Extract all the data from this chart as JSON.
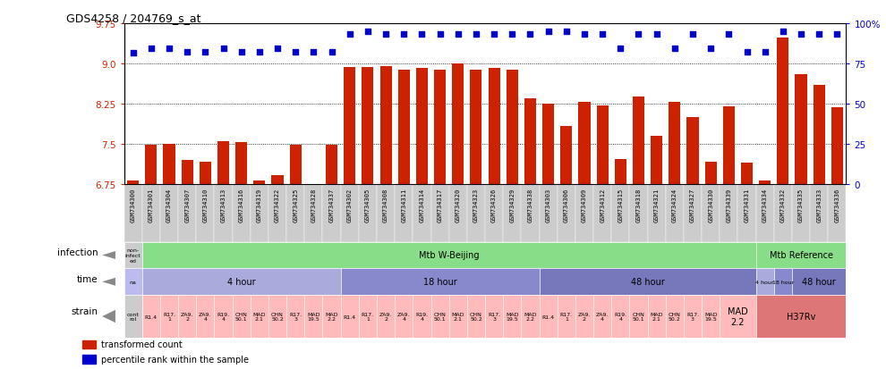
{
  "title": "GDS4258 / 204769_s_at",
  "samples": [
    "GSM734300",
    "GSM734301",
    "GSM734304",
    "GSM734307",
    "GSM734310",
    "GSM734313",
    "GSM734316",
    "GSM734319",
    "GSM734322",
    "GSM734325",
    "GSM734328",
    "GSM734337",
    "GSM734302",
    "GSM734305",
    "GSM734308",
    "GSM734311",
    "GSM734314",
    "GSM734317",
    "GSM734320",
    "GSM734323",
    "GSM734326",
    "GSM734329",
    "GSM734338",
    "GSM734303",
    "GSM734306",
    "GSM734309",
    "GSM734312",
    "GSM734315",
    "GSM734318",
    "GSM734321",
    "GSM734324",
    "GSM734327",
    "GSM734330",
    "GSM734339",
    "GSM734331",
    "GSM734334",
    "GSM734332",
    "GSM734335",
    "GSM734333",
    "GSM734336"
  ],
  "bar_values": [
    6.83,
    7.48,
    7.5,
    7.2,
    7.18,
    7.55,
    7.53,
    6.83,
    6.93,
    7.48,
    6.65,
    7.48,
    8.93,
    8.93,
    8.95,
    8.88,
    8.92,
    8.88,
    9.0,
    8.88,
    8.92,
    8.88,
    8.35,
    8.25,
    7.83,
    8.28,
    8.22,
    7.22,
    8.38,
    7.65,
    8.28,
    8.0,
    7.18,
    8.2,
    7.15,
    6.82,
    9.48,
    8.8,
    8.6,
    8.18
  ],
  "dot_values": [
    9.2,
    9.28,
    9.28,
    9.22,
    9.22,
    9.28,
    9.22,
    9.22,
    9.28,
    9.22,
    9.22,
    9.22,
    9.55,
    9.6,
    9.55,
    9.55,
    9.55,
    9.55,
    9.55,
    9.55,
    9.55,
    9.55,
    9.55,
    9.6,
    9.6,
    9.55,
    9.55,
    9.28,
    9.55,
    9.55,
    9.28,
    9.55,
    9.28,
    9.55,
    9.22,
    9.22,
    9.6,
    9.55,
    9.55,
    9.55
  ],
  "ylim": [
    6.75,
    9.75
  ],
  "yticks_left": [
    6.75,
    7.5,
    8.25,
    9.0,
    9.75
  ],
  "yticks_right": [
    0,
    25,
    50,
    75,
    100
  ],
  "bar_color": "#CC2200",
  "dot_color": "#0000CC",
  "bg_color": "#FFFFFF",
  "xticklabel_bg": "#CCCCCC",
  "infection_row": {
    "label": "infection",
    "segments": [
      {
        "text": "non-\ninfect\ned",
        "start": 0,
        "end": 1,
        "color": "#CCCCCC"
      },
      {
        "text": "Mtb W-Beijing",
        "start": 1,
        "end": 35,
        "color": "#88DD88"
      },
      {
        "text": "Mtb Reference",
        "start": 35,
        "end": 40,
        "color": "#88DD88"
      }
    ]
  },
  "time_row": {
    "label": "time",
    "segments": [
      {
        "text": "na",
        "start": 0,
        "end": 1,
        "color": "#BBBBEE"
      },
      {
        "text": "4 hour",
        "start": 1,
        "end": 12,
        "color": "#AAAADD"
      },
      {
        "text": "18 hour",
        "start": 12,
        "end": 23,
        "color": "#8888CC"
      },
      {
        "text": "48 hour",
        "start": 23,
        "end": 35,
        "color": "#7777BB"
      },
      {
        "text": "4 hour",
        "start": 35,
        "end": 36,
        "color": "#AAAADD"
      },
      {
        "text": "18 hour",
        "start": 36,
        "end": 37,
        "color": "#8888CC"
      },
      {
        "text": "48 hour",
        "start": 37,
        "end": 40,
        "color": "#7777BB"
      }
    ]
  },
  "strain_row": {
    "label": "strain",
    "segments": [
      {
        "text": "cont\nrol",
        "start": 0,
        "end": 1,
        "color": "#CCCCCC"
      },
      {
        "text": "R1.4",
        "start": 1,
        "end": 2,
        "color": "#FFBBBB"
      },
      {
        "text": "R17.\n1",
        "start": 2,
        "end": 3,
        "color": "#FFBBBB"
      },
      {
        "text": "ZA9.\n2",
        "start": 3,
        "end": 4,
        "color": "#FFBBBB"
      },
      {
        "text": "ZA9.\n4",
        "start": 4,
        "end": 5,
        "color": "#FFBBBB"
      },
      {
        "text": "R19.\n4",
        "start": 5,
        "end": 6,
        "color": "#FFBBBB"
      },
      {
        "text": "CHN\n50.1",
        "start": 6,
        "end": 7,
        "color": "#FFBBBB"
      },
      {
        "text": "MAD\n2.1",
        "start": 7,
        "end": 8,
        "color": "#FFBBBB"
      },
      {
        "text": "CHN\n50.2",
        "start": 8,
        "end": 9,
        "color": "#FFBBBB"
      },
      {
        "text": "R17.\n3",
        "start": 9,
        "end": 10,
        "color": "#FFBBBB"
      },
      {
        "text": "MAD\n19.5",
        "start": 10,
        "end": 11,
        "color": "#FFBBBB"
      },
      {
        "text": "MAD\n2.2",
        "start": 11,
        "end": 12,
        "color": "#FFBBBB"
      },
      {
        "text": "R1.4",
        "start": 12,
        "end": 13,
        "color": "#FFBBBB"
      },
      {
        "text": "R17.\n1",
        "start": 13,
        "end": 14,
        "color": "#FFBBBB"
      },
      {
        "text": "ZA9.\n2",
        "start": 14,
        "end": 15,
        "color": "#FFBBBB"
      },
      {
        "text": "ZA9.\n4",
        "start": 15,
        "end": 16,
        "color": "#FFBBBB"
      },
      {
        "text": "R19.\n4",
        "start": 16,
        "end": 17,
        "color": "#FFBBBB"
      },
      {
        "text": "CHN\n50.1",
        "start": 17,
        "end": 18,
        "color": "#FFBBBB"
      },
      {
        "text": "MAD\n2.1",
        "start": 18,
        "end": 19,
        "color": "#FFBBBB"
      },
      {
        "text": "CHN\n50.2",
        "start": 19,
        "end": 20,
        "color": "#FFBBBB"
      },
      {
        "text": "R17.\n3",
        "start": 20,
        "end": 21,
        "color": "#FFBBBB"
      },
      {
        "text": "MAD\n19.5",
        "start": 21,
        "end": 22,
        "color": "#FFBBBB"
      },
      {
        "text": "MAD\n2.2",
        "start": 22,
        "end": 23,
        "color": "#FFBBBB"
      },
      {
        "text": "R1.4",
        "start": 23,
        "end": 24,
        "color": "#FFBBBB"
      },
      {
        "text": "R17.\n1",
        "start": 24,
        "end": 25,
        "color": "#FFBBBB"
      },
      {
        "text": "ZA9.\n2",
        "start": 25,
        "end": 26,
        "color": "#FFBBBB"
      },
      {
        "text": "ZA9.\n4",
        "start": 26,
        "end": 27,
        "color": "#FFBBBB"
      },
      {
        "text": "R19.\n4",
        "start": 27,
        "end": 28,
        "color": "#FFBBBB"
      },
      {
        "text": "CHN\n50.1",
        "start": 28,
        "end": 29,
        "color": "#FFBBBB"
      },
      {
        "text": "MAD\n2.1",
        "start": 29,
        "end": 30,
        "color": "#FFBBBB"
      },
      {
        "text": "CHN\n50.2",
        "start": 30,
        "end": 31,
        "color": "#FFBBBB"
      },
      {
        "text": "R17.\n3",
        "start": 31,
        "end": 32,
        "color": "#FFBBBB"
      },
      {
        "text": "MAD\n19.5",
        "start": 32,
        "end": 33,
        "color": "#FFBBBB"
      },
      {
        "text": "MAD\n2.2",
        "start": 33,
        "end": 35,
        "color": "#FFBBBB"
      },
      {
        "text": "H37Rv",
        "start": 35,
        "end": 40,
        "color": "#DD7777"
      }
    ]
  },
  "legend": [
    {
      "color": "#CC2200",
      "label": "transformed count"
    },
    {
      "color": "#0000CC",
      "label": "percentile rank within the sample"
    }
  ]
}
